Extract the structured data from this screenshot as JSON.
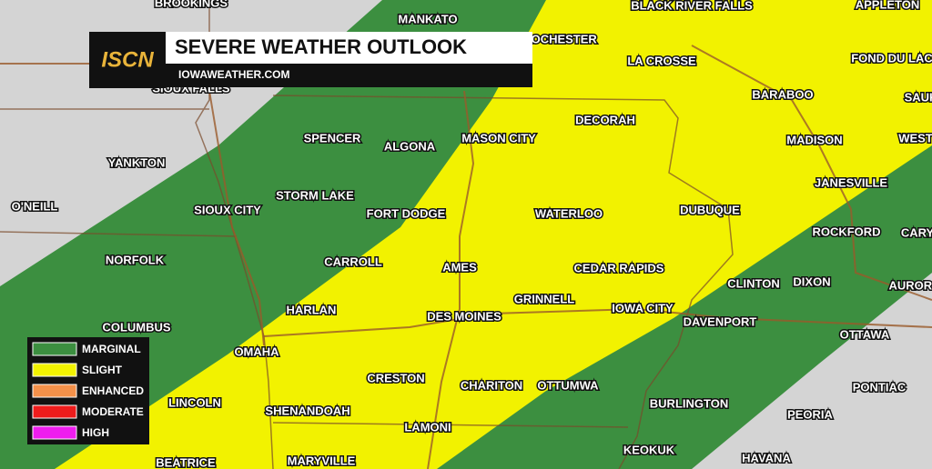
{
  "header": {
    "logo": "ISCN",
    "title": "SEVERE WEATHER OUTLOOK",
    "subtitle": "IOWAWEATHER.COM"
  },
  "legend": [
    "MARGINAL",
    "SLIGHT",
    "ENHANCED",
    "MODERATE",
    "HIGH"
  ],
  "cities": [
    "BROOKINGS",
    "MANKATO",
    "ROCHESTER",
    "BLACK RIVER FALLS",
    "APPLETON",
    "LA CROSSE",
    "FOND DU LAC",
    "BARABOO",
    "SAUK",
    "SIOUX FALLS",
    "YANKTON",
    "SPENCER",
    "ALGONA",
    "MASON CITY",
    "DECORAH",
    "MADISON",
    "WEST",
    "JANESVILLE",
    "O'NEILL",
    "SIOUX CITY",
    "STORM LAKE",
    "FORT DODGE",
    "WATERLOO",
    "DUBUQUE",
    "ROCKFORD",
    "CARY",
    "NORFOLK",
    "CARROLL",
    "AMES",
    "CEDAR RAPIDS",
    "CLINTON",
    "DIXON",
    "AURORA",
    "HARLAN",
    "DES MOINES",
    "GRINNELL",
    "IOWA CITY",
    "COLUMBUS",
    "DAVENPORT",
    "OTTAWA",
    "OMAHA",
    "CRESTON",
    "CHARITON",
    "OTTUMWA",
    "PONTIAC",
    "LINCOLN",
    "BURLINGTON",
    "SHENANDOAH",
    "PEORIA",
    "LAMONI",
    "KEOKUK",
    "HAVANA",
    "MARYVILLE",
    "BEATRICE"
  ]
}
